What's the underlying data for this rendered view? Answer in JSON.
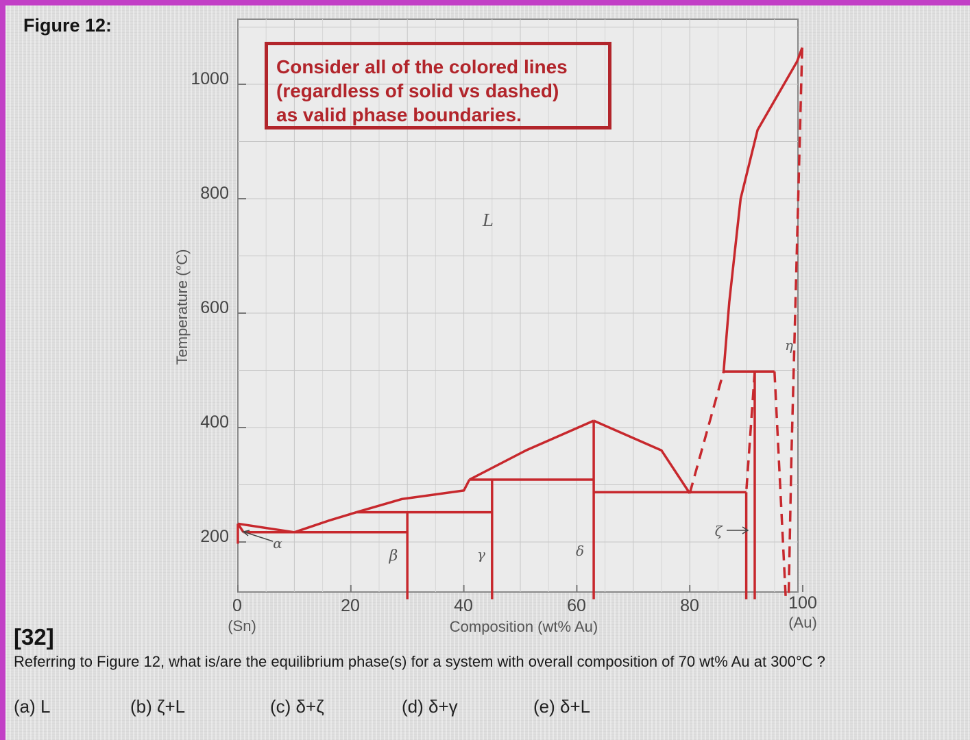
{
  "figure": {
    "title": "Figure 12:"
  },
  "note": {
    "lines": [
      "Consider all of the  colored lines",
      "(regardless of solid vs dashed)",
      "as valid phase boundaries."
    ]
  },
  "chart_data": {
    "type": "phase-diagram",
    "xlabel": "Composition (wt% Au)",
    "ylabel": "Temperature (°C)",
    "xlim": [
      0,
      100
    ],
    "ylim": [
      100,
      1100
    ],
    "x_ticks": [
      {
        "value": "0",
        "sub": "(Sn)"
      },
      {
        "value": "20",
        "sub": ""
      },
      {
        "value": "40",
        "sub": ""
      },
      {
        "value": "60",
        "sub": ""
      },
      {
        "value": "80",
        "sub": ""
      },
      {
        "value": "100",
        "sub": "(Au)"
      }
    ],
    "y_ticks": [
      "200",
      "400",
      "600",
      "800",
      "1000"
    ],
    "phase_labels": [
      "L",
      "α",
      "β",
      "γ",
      "δ",
      "ζ",
      "η"
    ],
    "boundary_color": "#c7282d",
    "boundaries": [
      {
        "style": "solid",
        "points": [
          [
            0,
            232
          ],
          [
            10,
            217
          ]
        ]
      },
      {
        "style": "solid",
        "points": [
          [
            0,
            232
          ],
          [
            0,
            197
          ]
        ]
      },
      {
        "style": "solid",
        "points": [
          [
            0,
            232
          ],
          [
            1,
            217
          ]
        ]
      },
      {
        "style": "solid",
        "points": [
          [
            1,
            217
          ],
          [
            30,
            217
          ]
        ]
      },
      {
        "style": "solid",
        "points": [
          [
            10,
            217
          ],
          [
            16,
            237
          ],
          [
            21,
            252
          ]
        ]
      },
      {
        "style": "solid",
        "points": [
          [
            21,
            252
          ],
          [
            29,
            275
          ],
          [
            40,
            290
          ],
          [
            41,
            309
          ]
        ]
      },
      {
        "style": "solid",
        "points": [
          [
            21,
            252
          ],
          [
            45,
            252
          ]
        ]
      },
      {
        "style": "solid",
        "points": [
          [
            41,
            309
          ],
          [
            63,
            309
          ]
        ]
      },
      {
        "style": "solid",
        "points": [
          [
            41,
            309
          ],
          [
            51,
            360
          ],
          [
            63,
            412
          ]
        ]
      },
      {
        "style": "solid",
        "points": [
          [
            63,
            412
          ],
          [
            75,
            360
          ],
          [
            80,
            285
          ]
        ]
      },
      {
        "style": "solid",
        "points": [
          [
            63,
            287
          ],
          [
            90,
            287
          ]
        ]
      },
      {
        "style": "solid",
        "points": [
          [
            30,
            252
          ],
          [
            30,
            100
          ]
        ]
      },
      {
        "style": "solid",
        "points": [
          [
            45,
            309
          ],
          [
            45,
            100
          ]
        ]
      },
      {
        "style": "solid",
        "points": [
          [
            63,
            412
          ],
          [
            63,
            100
          ]
        ]
      },
      {
        "style": "solid",
        "points": [
          [
            90,
            287
          ],
          [
            90,
            100
          ]
        ]
      },
      {
        "style": "solid",
        "points": [
          [
            91.5,
            498
          ],
          [
            91.5,
            100
          ]
        ]
      },
      {
        "style": "solid",
        "points": [
          [
            86,
            498
          ],
          [
            95,
            498
          ]
        ]
      },
      {
        "style": "dashed",
        "points": [
          [
            80,
            285
          ],
          [
            86,
            498
          ]
        ]
      },
      {
        "style": "dashed",
        "points": [
          [
            91.5,
            498
          ],
          [
            90,
            287
          ]
        ]
      },
      {
        "style": "dashed",
        "points": [
          [
            95,
            498
          ],
          [
            97,
            100
          ]
        ]
      },
      {
        "style": "solid",
        "points": [
          [
            86,
            498
          ],
          [
            87,
            620
          ],
          [
            89,
            800
          ],
          [
            92,
            920
          ],
          [
            99,
            1040
          ],
          [
            99.9,
            1064
          ]
        ]
      },
      {
        "style": "dashed",
        "points": [
          [
            99.9,
            1064
          ],
          [
            98,
            350
          ],
          [
            97.5,
            100
          ]
        ]
      }
    ]
  },
  "question": {
    "number": "[32]",
    "text": "Referring to Figure 12, what is/are the equilibrium phase(s) for a system with overall composition of 70 wt% Au at 300°C ?",
    "choices": [
      "(a)  L",
      "(b)  ζ+L",
      "(c)  δ+ζ",
      "(d)  δ+γ",
      "(e)  δ+L"
    ]
  }
}
